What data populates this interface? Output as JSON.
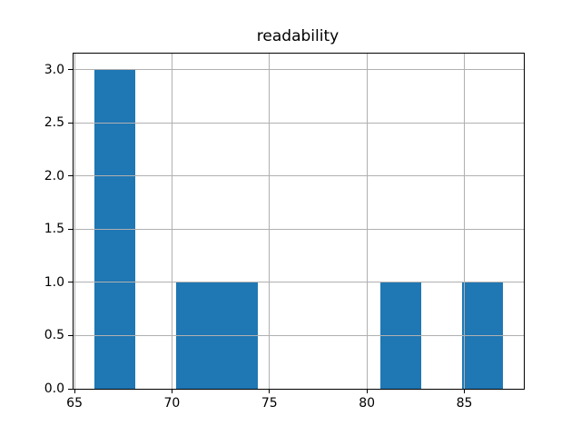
{
  "figure": {
    "background": "#ffffff"
  },
  "chart_data": {
    "type": "bar",
    "subtype": "histogram",
    "title": "readability",
    "xlabel": "",
    "ylabel": "",
    "bin_edges": [
      66.0,
      68.1,
      70.2,
      72.3,
      74.4,
      76.5,
      78.6,
      80.7,
      82.8,
      84.9,
      87.0
    ],
    "counts": [
      3,
      0,
      1,
      1,
      0,
      0,
      0,
      1,
      0,
      1
    ],
    "xlim": [
      64.95,
      88.05
    ],
    "ylim": [
      0,
      3.15
    ],
    "xticks": [
      65,
      70,
      75,
      80,
      85
    ],
    "xtick_labels": [
      "65",
      "70",
      "75",
      "80",
      "85"
    ],
    "yticks": [
      0.0,
      0.5,
      1.0,
      1.5,
      2.0,
      2.5,
      3.0
    ],
    "ytick_labels": [
      "0.0",
      "0.5",
      "1.0",
      "1.5",
      "2.0",
      "2.5",
      "3.0"
    ],
    "bar_color": "#1f77b4",
    "grid": true,
    "grid_color": "#b0b0b0",
    "grid_above_bars": true,
    "spine_color": "#000000",
    "legend": null
  }
}
